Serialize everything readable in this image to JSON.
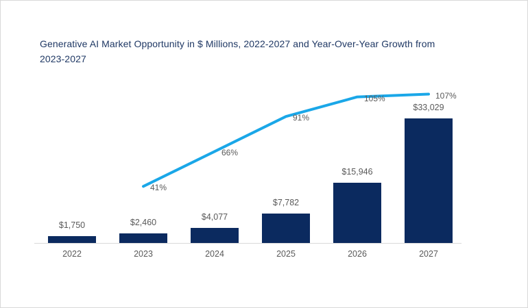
{
  "chart": {
    "title": "Generative AI Market Opportunity in $ Millions, 2022-2027 and Year-Over-Year Growth from 2023-2027",
    "title_color": "#1f3864",
    "label_color": "#595959",
    "axis_color": "#d9d9d9",
    "background": "#ffffff"
  },
  "chart_data": {
    "type": "bar",
    "subtype": "combo-bar-line",
    "title": "Generative AI Market Opportunity in $ Millions, 2022-2027 and Year-Over-Year Growth from 2023-2027",
    "categories": [
      "2022",
      "2023",
      "2024",
      "2025",
      "2026",
      "2027"
    ],
    "grid": false,
    "legend_position": "none",
    "xlabel": "",
    "ylabel": "",
    "series": [
      {
        "name": "Market opportunity ($ Millions)",
        "type": "bar",
        "color": "#0b2a5f",
        "values": [
          1750,
          2460,
          4077,
          7782,
          15946,
          33029
        ],
        "labels": [
          "$1,750",
          "$2,460",
          "$4,077",
          "$7,782",
          "$15,946",
          "$33,029"
        ],
        "ylim": [
          0,
          35000
        ]
      },
      {
        "name": "Year-over-year growth",
        "type": "line",
        "color": "#1aa7e8",
        "categories": [
          "2023",
          "2024",
          "2025",
          "2026",
          "2027"
        ],
        "values": [
          41,
          66,
          91,
          105,
          107
        ],
        "labels": [
          "41%",
          "66%",
          "91%",
          "105%",
          "107%"
        ],
        "ylim": [
          0,
          120
        ]
      }
    ]
  }
}
